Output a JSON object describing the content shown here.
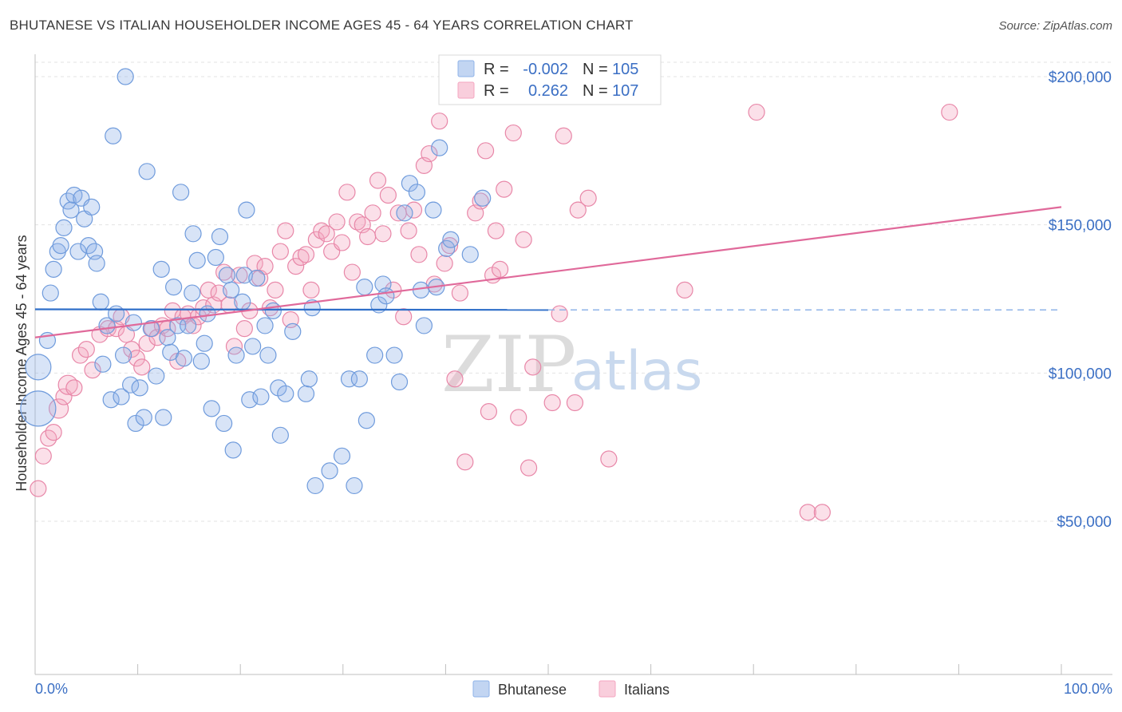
{
  "header": {
    "title": "BHUTANESE VS ITALIAN HOUSEHOLDER INCOME AGES 45 - 64 YEARS CORRELATION CHART",
    "source": "Source: ZipAtlas.com"
  },
  "watermark": {
    "zip": "ZIP",
    "atlas": "atlas"
  },
  "stats": {
    "r_label": "R =",
    "n_label": "N =",
    "rows": [
      {
        "series": "Bhutanese",
        "r": "-0.002",
        "n": "105",
        "color": "#8fb3e8"
      },
      {
        "series": "Italians",
        "r": "0.262",
        "n": "107",
        "color": "#f4a6c0"
      }
    ]
  },
  "legend": [
    {
      "label": "Bhutanese",
      "color": "#8fb3e8"
    },
    {
      "label": "Italians",
      "color": "#f4a6c0"
    }
  ],
  "chart_data": {
    "type": "scatter",
    "title": "BHUTANESE VS ITALIAN HOUSEHOLDER INCOME AGES 45 - 64 YEARS CORRELATION CHART",
    "xlabel": "",
    "ylabel": "Householder Income Ages 45 - 64 years",
    "x_unit": "%",
    "xlim": [
      0,
      100
    ],
    "ylim": [
      0,
      205000
    ],
    "x_tick_labels": {
      "min": "0.0%",
      "max": "100.0%"
    },
    "y_ticks": [
      {
        "value": 50000,
        "label": "$50,000"
      },
      {
        "value": 100000,
        "label": "$100,000"
      },
      {
        "value": 150000,
        "label": "$150,000"
      },
      {
        "value": 200000,
        "label": "$200,000"
      }
    ],
    "grid": true,
    "series": [
      {
        "name": "Bhutanese",
        "color": "#8fb3e8",
        "stroke": "#6f9bdc",
        "trend": {
          "x0": 0,
          "y0": 121500,
          "x1": 50,
          "y1": 121300,
          "dash_to": 100
        },
        "points": [
          [
            0.3,
            88000,
            22
          ],
          [
            0.3,
            102000,
            16
          ],
          [
            1.2,
            111000,
            10
          ],
          [
            1.5,
            127000,
            10
          ],
          [
            1.8,
            135000,
            10
          ],
          [
            2.2,
            141000,
            10
          ],
          [
            2.5,
            143000,
            10
          ],
          [
            2.8,
            149000,
            10
          ],
          [
            3.2,
            158000,
            10
          ],
          [
            3.5,
            155000,
            10
          ],
          [
            3.8,
            160000,
            10
          ],
          [
            4.2,
            141000,
            10
          ],
          [
            4.5,
            159000,
            10
          ],
          [
            4.8,
            152000,
            10
          ],
          [
            5.2,
            143000,
            10
          ],
          [
            5.5,
            156000,
            10
          ],
          [
            5.8,
            141000,
            10
          ],
          [
            6.0,
            137000,
            10
          ],
          [
            6.4,
            124000,
            10
          ],
          [
            6.6,
            103000,
            10
          ],
          [
            7.0,
            116000,
            10
          ],
          [
            7.4,
            91000,
            10
          ],
          [
            7.6,
            180000,
            10
          ],
          [
            7.9,
            120000,
            10
          ],
          [
            8.4,
            92000,
            10
          ],
          [
            8.6,
            106000,
            10
          ],
          [
            8.8,
            200000,
            10
          ],
          [
            9.3,
            96000,
            10
          ],
          [
            9.6,
            117000,
            10
          ],
          [
            9.8,
            83000,
            10
          ],
          [
            10.2,
            95000,
            10
          ],
          [
            10.6,
            85000,
            10
          ],
          [
            10.9,
            168000,
            10
          ],
          [
            11.3,
            115000,
            10
          ],
          [
            11.8,
            99000,
            10
          ],
          [
            12.3,
            135000,
            10
          ],
          [
            12.5,
            85000,
            10
          ],
          [
            12.9,
            112000,
            10
          ],
          [
            13.2,
            107000,
            10
          ],
          [
            13.5,
            129000,
            10
          ],
          [
            13.9,
            116000,
            10
          ],
          [
            14.2,
            161000,
            10
          ],
          [
            14.5,
            105000,
            10
          ],
          [
            14.9,
            116000,
            10
          ],
          [
            15.3,
            127000,
            10
          ],
          [
            15.4,
            147000,
            10
          ],
          [
            15.8,
            138000,
            10
          ],
          [
            16.2,
            104000,
            10
          ],
          [
            16.5,
            110000,
            10
          ],
          [
            16.8,
            120000,
            10
          ],
          [
            17.2,
            88000,
            10
          ],
          [
            17.6,
            139000,
            10
          ],
          [
            18.0,
            146000,
            10
          ],
          [
            18.4,
            83000,
            10
          ],
          [
            18.7,
            133000,
            10
          ],
          [
            19.1,
            128000,
            10
          ],
          [
            19.3,
            74000,
            10
          ],
          [
            19.6,
            106000,
            10
          ],
          [
            20.2,
            124000,
            10
          ],
          [
            20.4,
            133000,
            10
          ],
          [
            20.6,
            155000,
            10
          ],
          [
            20.9,
            91000,
            10
          ],
          [
            21.2,
            109000,
            10
          ],
          [
            21.6,
            132000,
            10
          ],
          [
            22.0,
            92000,
            10
          ],
          [
            22.4,
            116000,
            10
          ],
          [
            22.7,
            106000,
            10
          ],
          [
            23.2,
            121000,
            10
          ],
          [
            23.7,
            95000,
            10
          ],
          [
            23.9,
            79000,
            10
          ],
          [
            24.4,
            93000,
            10
          ],
          [
            25.1,
            114000,
            10
          ],
          [
            26.4,
            93000,
            10
          ],
          [
            26.7,
            98000,
            10
          ],
          [
            27.0,
            122000,
            10
          ],
          [
            27.3,
            62000,
            10
          ],
          [
            28.7,
            67000,
            10
          ],
          [
            29.9,
            72000,
            10
          ],
          [
            30.6,
            98000,
            10
          ],
          [
            31.1,
            62000,
            10
          ],
          [
            31.6,
            98000,
            10
          ],
          [
            32.1,
            129000,
            10
          ],
          [
            32.3,
            84000,
            10
          ],
          [
            33.1,
            106000,
            10
          ],
          [
            33.5,
            123000,
            10
          ],
          [
            33.9,
            130000,
            10
          ],
          [
            34.2,
            126000,
            10
          ],
          [
            35.0,
            106000,
            10
          ],
          [
            35.5,
            97000,
            10
          ],
          [
            36.0,
            154000,
            10
          ],
          [
            36.5,
            164000,
            10
          ],
          [
            37.2,
            161000,
            10
          ],
          [
            37.6,
            128000,
            10
          ],
          [
            37.9,
            116000,
            10
          ],
          [
            38.8,
            155000,
            10
          ],
          [
            39.1,
            129000,
            10
          ],
          [
            39.4,
            176000,
            10
          ],
          [
            40.1,
            142000,
            10
          ],
          [
            40.5,
            145000,
            10
          ],
          [
            42.4,
            140000,
            10
          ],
          [
            43.6,
            159000,
            10
          ]
        ]
      },
      {
        "name": "Italians",
        "color": "#f4a6c0",
        "stroke": "#e887a8",
        "trend": {
          "x0": 0,
          "y0": 112000,
          "x1": 100,
          "y1": 156000
        },
        "points": [
          [
            0.3,
            61000,
            10
          ],
          [
            0.8,
            72000,
            10
          ],
          [
            1.3,
            78000,
            10
          ],
          [
            1.8,
            80000,
            10
          ],
          [
            2.3,
            88000,
            12
          ],
          [
            2.8,
            92000,
            10
          ],
          [
            3.2,
            96000,
            12
          ],
          [
            3.8,
            95000,
            10
          ],
          [
            4.4,
            106000,
            10
          ],
          [
            5.0,
            108000,
            10
          ],
          [
            5.6,
            101000,
            10
          ],
          [
            6.3,
            113000,
            10
          ],
          [
            7.1,
            115000,
            10
          ],
          [
            7.9,
            115000,
            10
          ],
          [
            8.4,
            119000,
            10
          ],
          [
            8.9,
            113000,
            10
          ],
          [
            9.4,
            108000,
            10
          ],
          [
            9.9,
            105000,
            10
          ],
          [
            10.4,
            102000,
            10
          ],
          [
            10.9,
            110000,
            10
          ],
          [
            11.4,
            115000,
            10
          ],
          [
            11.9,
            112000,
            10
          ],
          [
            12.4,
            116000,
            10
          ],
          [
            12.9,
            115000,
            10
          ],
          [
            13.4,
            121000,
            10
          ],
          [
            13.9,
            104000,
            10
          ],
          [
            14.4,
            119000,
            10
          ],
          [
            14.9,
            120000,
            10
          ],
          [
            15.4,
            116000,
            10
          ],
          [
            15.9,
            119000,
            10
          ],
          [
            16.4,
            122000,
            10
          ],
          [
            16.9,
            128000,
            10
          ],
          [
            17.4,
            123000,
            10
          ],
          [
            17.9,
            127000,
            10
          ],
          [
            18.4,
            134000,
            10
          ],
          [
            18.9,
            123000,
            10
          ],
          [
            19.4,
            109000,
            10
          ],
          [
            19.9,
            133000,
            10
          ],
          [
            20.4,
            115000,
            10
          ],
          [
            20.9,
            121000,
            10
          ],
          [
            21.4,
            137000,
            10
          ],
          [
            21.9,
            132000,
            10
          ],
          [
            22.4,
            136000,
            10
          ],
          [
            22.9,
            122000,
            10
          ],
          [
            23.4,
            128000,
            10
          ],
          [
            23.9,
            141000,
            10
          ],
          [
            24.4,
            148000,
            10
          ],
          [
            24.9,
            118000,
            10
          ],
          [
            25.4,
            136000,
            10
          ],
          [
            25.9,
            139000,
            10
          ],
          [
            26.4,
            140000,
            10
          ],
          [
            26.9,
            128000,
            10
          ],
          [
            27.4,
            145000,
            10
          ],
          [
            27.9,
            148000,
            10
          ],
          [
            28.4,
            147000,
            10
          ],
          [
            28.9,
            141000,
            10
          ],
          [
            29.4,
            151000,
            10
          ],
          [
            29.9,
            144000,
            10
          ],
          [
            30.4,
            161000,
            10
          ],
          [
            30.9,
            134000,
            10
          ],
          [
            31.4,
            151000,
            10
          ],
          [
            31.9,
            150000,
            10
          ],
          [
            32.4,
            146000,
            10
          ],
          [
            32.9,
            154000,
            10
          ],
          [
            33.4,
            165000,
            10
          ],
          [
            33.9,
            147000,
            10
          ],
          [
            34.4,
            160000,
            10
          ],
          [
            34.9,
            128000,
            10
          ],
          [
            35.4,
            154000,
            10
          ],
          [
            35.9,
            119000,
            10
          ],
          [
            36.4,
            148000,
            10
          ],
          [
            36.9,
            155000,
            10
          ],
          [
            37.4,
            140000,
            10
          ],
          [
            37.9,
            170000,
            10
          ],
          [
            38.4,
            174000,
            10
          ],
          [
            38.9,
            130000,
            10
          ],
          [
            39.4,
            185000,
            10
          ],
          [
            39.9,
            137000,
            10
          ],
          [
            40.4,
            143000,
            10
          ],
          [
            40.9,
            98000,
            10
          ],
          [
            41.4,
            127000,
            10
          ],
          [
            41.9,
            70000,
            10
          ],
          [
            42.9,
            154000,
            10
          ],
          [
            43.4,
            158000,
            10
          ],
          [
            43.9,
            175000,
            10
          ],
          [
            44.2,
            87000,
            10
          ],
          [
            44.6,
            133000,
            10
          ],
          [
            44.9,
            148000,
            10
          ],
          [
            45.3,
            135000,
            10
          ],
          [
            45.7,
            162000,
            10
          ],
          [
            46.6,
            181000,
            10
          ],
          [
            47.1,
            85000,
            10
          ],
          [
            47.6,
            145000,
            10
          ],
          [
            48.1,
            68000,
            10
          ],
          [
            48.5,
            102000,
            10
          ],
          [
            50.4,
            90000,
            10
          ],
          [
            51.1,
            120000,
            10
          ],
          [
            51.5,
            180000,
            10
          ],
          [
            52.6,
            90000,
            10
          ],
          [
            52.9,
            155000,
            10
          ],
          [
            53.9,
            159000,
            10
          ],
          [
            55.9,
            71000,
            10
          ],
          [
            63.3,
            128000,
            10
          ],
          [
            70.3,
            188000,
            10
          ],
          [
            75.3,
            53000,
            10
          ],
          [
            76.7,
            53000,
            10
          ],
          [
            89.1,
            188000,
            10
          ]
        ]
      }
    ]
  }
}
